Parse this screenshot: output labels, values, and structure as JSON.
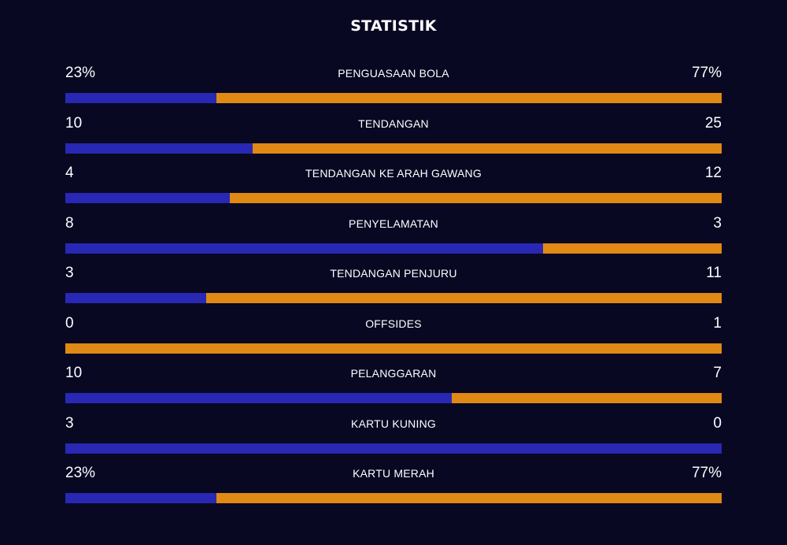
{
  "title": "STATISTIK",
  "colors": {
    "background": "#080823",
    "home": "#2828b4",
    "away": "#e08914"
  },
  "stats": [
    {
      "label": "PENGUASAAN BOLA",
      "home": "23%",
      "away": "77%",
      "home_share": 0.23
    },
    {
      "label": "TENDANGAN",
      "home": "10",
      "away": "25",
      "home_share": 0.2857
    },
    {
      "label": "TENDANGAN KE ARAH GAWANG",
      "home": "4",
      "away": "12",
      "home_share": 0.25
    },
    {
      "label": "PENYELAMATAN",
      "home": "8",
      "away": "3",
      "home_share": 0.7273
    },
    {
      "label": "TENDANGAN PENJURU",
      "home": "3",
      "away": "11",
      "home_share": 0.2143
    },
    {
      "label": "OFFSIDES",
      "home": "0",
      "away": "1",
      "home_share": 0
    },
    {
      "label": "PELANGGARAN",
      "home": "10",
      "away": "7",
      "home_share": 0.5882
    },
    {
      "label": "KARTU KUNING",
      "home": "3",
      "away": "0",
      "home_share": 1
    },
    {
      "label": "KARTU MERAH",
      "home": "23%",
      "away": "77%",
      "home_share": 0.23
    }
  ]
}
